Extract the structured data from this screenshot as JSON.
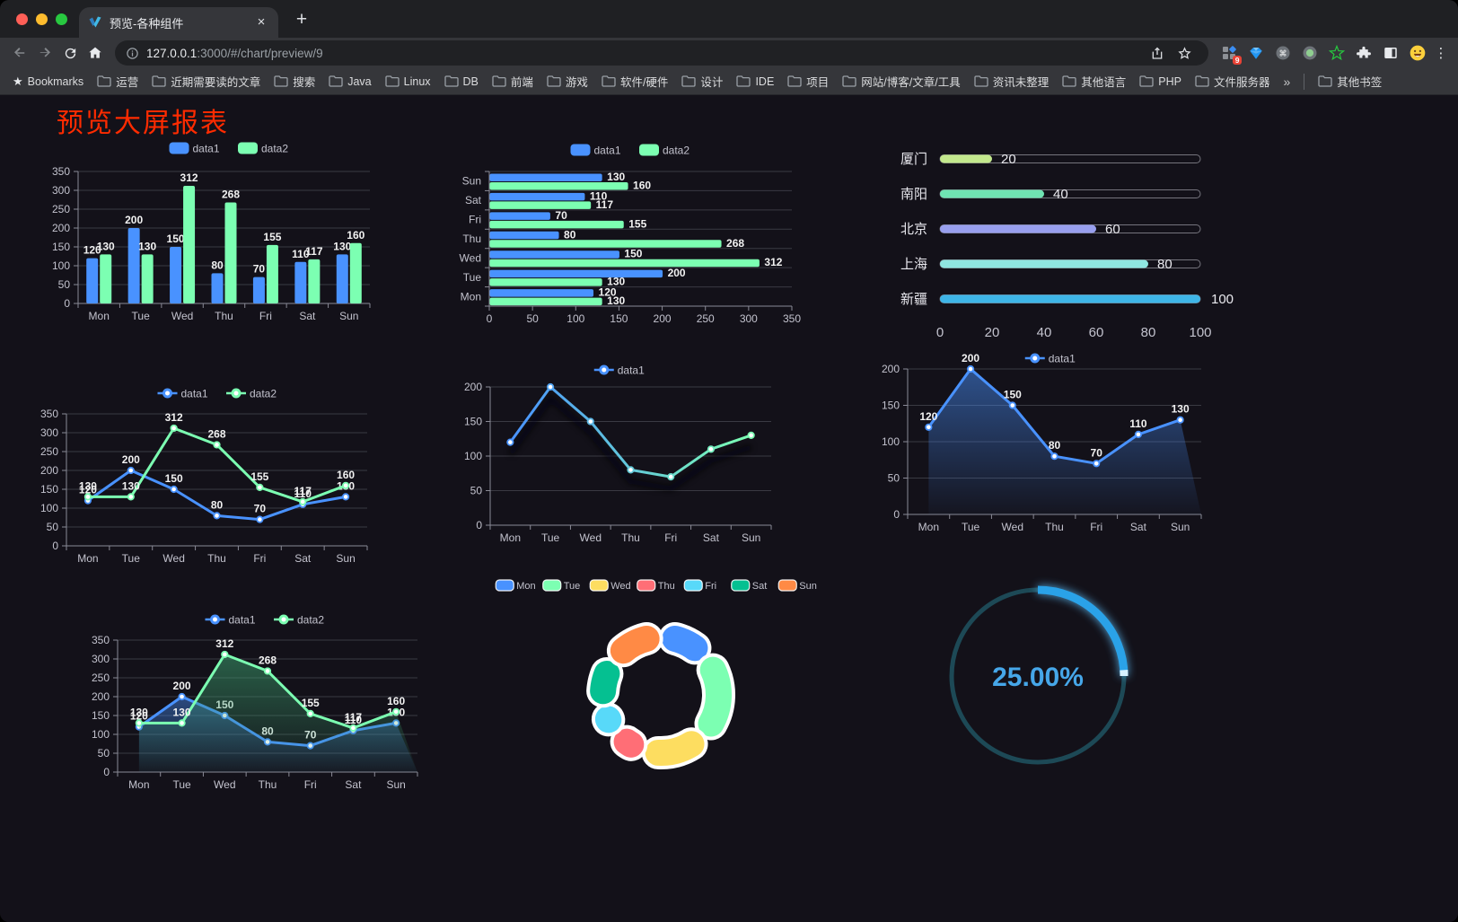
{
  "browser": {
    "traffic_lights": {
      "close": "#ff5f57",
      "minimize": "#febc2e",
      "zoom": "#28c840"
    },
    "tab": {
      "title": "预览-各种组件",
      "close_glyph": "×",
      "new_tab_glyph": "+"
    },
    "address": {
      "host": "127.0.0.1",
      "rest": ":3000/#/chart/preview/9"
    },
    "extension_badge": "9",
    "menu_glyph": "⋮",
    "bookmarks": {
      "star_glyph": "★",
      "label": "Bookmarks",
      "items": [
        "运营",
        "近期需要读的文章",
        "搜索",
        "Java",
        "Linux",
        "DB",
        "前端",
        "游戏",
        "软件/硬件",
        "设计",
        "IDE",
        "项目",
        "网站/博客/文章/工具",
        "资讯未整理",
        "其他语言",
        "PHP",
        "文件服务器"
      ],
      "overflow_glyph": "»",
      "other_label": "其他书签"
    }
  },
  "page": {
    "title": "预览大屏报表",
    "title_color": "#ff2b00",
    "background": "#131119"
  },
  "chart_data": [
    {
      "id": "grouped-bar",
      "type": "bar",
      "categories": [
        "Mon",
        "Tue",
        "Wed",
        "Thu",
        "Fri",
        "Sat",
        "Sun"
      ],
      "series": [
        {
          "name": "data1",
          "color": "#4992ff",
          "values": [
            120,
            200,
            150,
            80,
            70,
            110,
            130
          ]
        },
        {
          "name": "data2",
          "color": "#7cffb2",
          "values": [
            130,
            130,
            312,
            268,
            155,
            117,
            160
          ]
        }
      ],
      "ylim": [
        0,
        350
      ],
      "ystep": 50,
      "grid": true,
      "labels": true,
      "legend_position": "top"
    },
    {
      "id": "grouped-hbar",
      "type": "bar-horizontal",
      "categories": [
        "Mon",
        "Tue",
        "Wed",
        "Thu",
        "Fri",
        "Sat",
        "Sun"
      ],
      "series": [
        {
          "name": "data1",
          "color": "#4992ff",
          "values": [
            120,
            200,
            150,
            80,
            70,
            110,
            130
          ]
        },
        {
          "name": "data2",
          "color": "#7cffb2",
          "values": [
            130,
            130,
            312,
            268,
            155,
            117,
            160
          ]
        }
      ],
      "xlim": [
        0,
        350
      ],
      "xstep": 50,
      "grid": true,
      "labels": true,
      "legend_position": "top"
    },
    {
      "id": "city-progress",
      "type": "progress-bars",
      "items": [
        {
          "label": "厦门",
          "value": 20,
          "color": "#c3e88d"
        },
        {
          "label": "南阳",
          "value": 40,
          "color": "#6fe3b2"
        },
        {
          "label": "北京",
          "value": 60,
          "color": "#989fee"
        },
        {
          "label": "上海",
          "value": 80,
          "color": "#8fe6e0"
        },
        {
          "label": "新疆",
          "value": 100,
          "color": "#3eb5e7"
        }
      ],
      "xlim": [
        0,
        100
      ],
      "xticks": [
        0,
        20,
        40,
        60,
        80,
        100
      ]
    },
    {
      "id": "dual-line",
      "type": "line",
      "categories": [
        "Mon",
        "Tue",
        "Wed",
        "Thu",
        "Fri",
        "Sat",
        "Sun"
      ],
      "series": [
        {
          "name": "data1",
          "color": "#4992ff",
          "values": [
            120,
            200,
            150,
            80,
            70,
            110,
            130
          ]
        },
        {
          "name": "data2",
          "color": "#7cffb2",
          "values": [
            130,
            130,
            312,
            268,
            155,
            117,
            160
          ]
        }
      ],
      "ylim": [
        0,
        350
      ],
      "ystep": 50,
      "labels": true,
      "legend_position": "top"
    },
    {
      "id": "gradient-line",
      "type": "line",
      "categories": [
        "Mon",
        "Tue",
        "Wed",
        "Thu",
        "Fri",
        "Sat",
        "Sun"
      ],
      "series": [
        {
          "name": "data1",
          "gradient": [
            "#4992ff",
            "#7cffb2"
          ],
          "shadow": true,
          "values": [
            120,
            200,
            150,
            80,
            70,
            110,
            130
          ]
        }
      ],
      "ylim": [
        0,
        200
      ],
      "ystep": 50,
      "labels": false,
      "legend_position": "top"
    },
    {
      "id": "area-line",
      "type": "line",
      "categories": [
        "Mon",
        "Tue",
        "Wed",
        "Thu",
        "Fri",
        "Sat",
        "Sun"
      ],
      "series": [
        {
          "name": "data1",
          "color": "#4992ff",
          "area": [
            "rgba(73,146,255,0.50)",
            "rgba(73,146,255,0.03)"
          ],
          "values": [
            120,
            200,
            150,
            80,
            70,
            110,
            130
          ]
        }
      ],
      "ylim": [
        0,
        200
      ],
      "ystep": 50,
      "labels": true,
      "legend_position": "top"
    },
    {
      "id": "dual-area-line",
      "type": "line",
      "categories": [
        "Mon",
        "Tue",
        "Wed",
        "Thu",
        "Fri",
        "Sat",
        "Sun"
      ],
      "series": [
        {
          "name": "data1",
          "color": "#4992ff",
          "area": [
            "rgba(73,146,255,0.45)",
            "rgba(73,146,255,0.03)"
          ],
          "values": [
            120,
            200,
            150,
            80,
            70,
            110,
            130
          ]
        },
        {
          "name": "data2",
          "color": "#7cffb2",
          "area": [
            "rgba(60,160,110,0.55)",
            "rgba(60,160,110,0.04)"
          ],
          "values": [
            130,
            130,
            312,
            268,
            155,
            117,
            160
          ]
        }
      ],
      "ylim": [
        0,
        350
      ],
      "ystep": 50,
      "labels": true,
      "legend_position": "top"
    },
    {
      "id": "week-donut",
      "type": "pie",
      "donut": true,
      "items": [
        {
          "label": "Mon",
          "value": 120,
          "color": "#4992ff"
        },
        {
          "label": "Tue",
          "value": 200,
          "color": "#7cffb2"
        },
        {
          "label": "Wed",
          "value": 150,
          "color": "#fddd60"
        },
        {
          "label": "Thu",
          "value": 80,
          "color": "#ff6e76"
        },
        {
          "label": "Fri",
          "value": 70,
          "color": "#58d9f9"
        },
        {
          "label": "Sat",
          "value": 110,
          "color": "#05c091"
        },
        {
          "label": "Sun",
          "value": 130,
          "color": "#ff8a45"
        }
      ],
      "legend_position": "top"
    },
    {
      "id": "percent-gauge",
      "type": "gauge",
      "value": 25,
      "display": "25.00%",
      "progress_color": "#2aa2e8",
      "track_color": "#1d4956",
      "text_color": "#46a7e9"
    }
  ]
}
